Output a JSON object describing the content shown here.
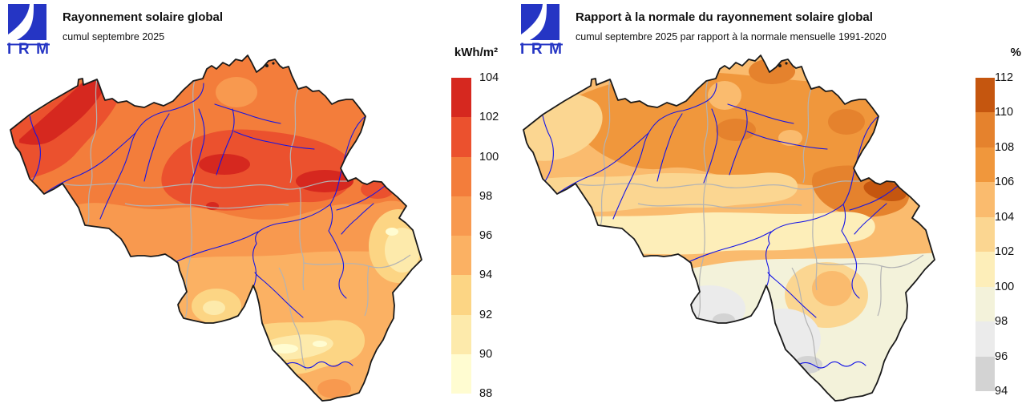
{
  "background": "#ffffff",
  "map_style": {
    "country_border_color": "#1a1a1a",
    "province_border_color": "#b3b3b3",
    "river_color": "#1414e6",
    "logo_blue": "#2535c4"
  },
  "panels": [
    {
      "logo_text": "IRM",
      "title": "Rayonnement solaire global",
      "subtitle": "cumul septembre 2025",
      "legend": {
        "unit": "kWh/m²",
        "tick_labels": [
          "104",
          "102",
          "100",
          "98",
          "96",
          "94",
          "92",
          "90",
          "88"
        ],
        "band_colors_top_to_bottom": [
          "#d6281f",
          "#eb512e",
          "#f37d3b",
          "#f8994f",
          "#fbb163",
          "#fcd584",
          "#fdeaab",
          "#fffcd1"
        ]
      }
    },
    {
      "logo_text": "IRM",
      "title": "Rapport à la normale du rayonnement solaire global",
      "subtitle": "cumul septembre 2025 par rapport à la normale mensuelle 1991-2020",
      "legend": {
        "unit": "%",
        "tick_labels": [
          "112",
          "110",
          "108",
          "106",
          "104",
          "102",
          "100",
          "98",
          "96",
          "94"
        ],
        "band_colors_top_to_bottom": [
          "#c5560f",
          "#e5822d",
          "#f0973c",
          "#fabb6e",
          "#fbd691",
          "#fdeeb9",
          "#f3f2da",
          "#ebebeb",
          "#d3d3d3"
        ]
      }
    }
  ]
}
